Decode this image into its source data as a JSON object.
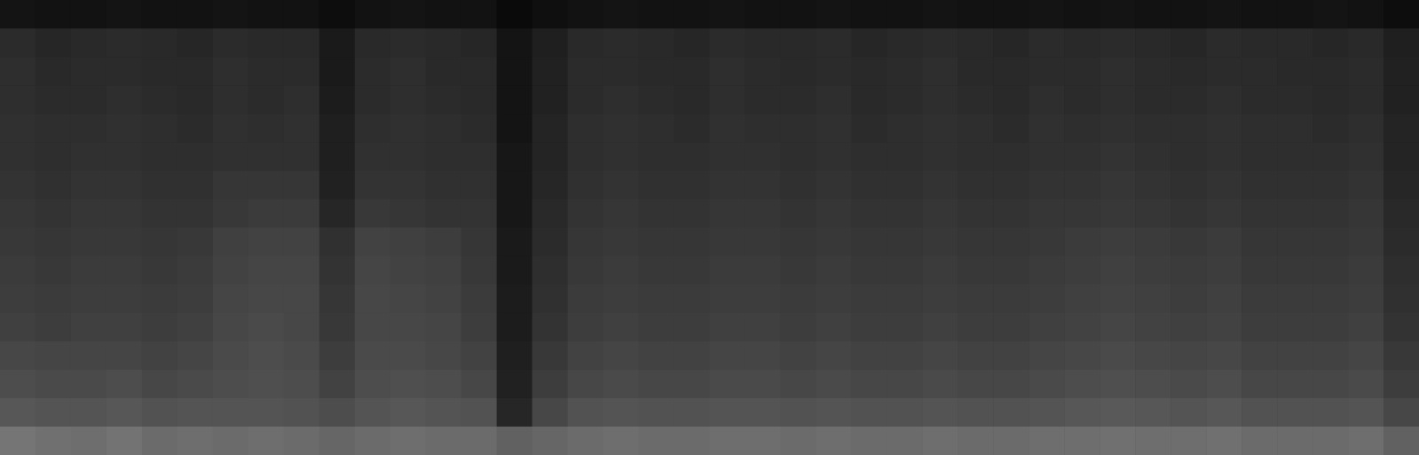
{
  "chart_data": {
    "type": "heatmap",
    "tick_labels": false,
    "zlim": [
      0,
      1
    ],
    "cells": [
      [
        0.08,
        0.07,
        0.07,
        0.08,
        0.07,
        0.07,
        0.08,
        0.07,
        0.07,
        0.05,
        0.07,
        0.08,
        0.07,
        0.07,
        0.04,
        0.06,
        0.07,
        0.08,
        0.07,
        0.07,
        0.08,
        0.07,
        0.07,
        0.08,
        0.07,
        0.07,
        0.08,
        0.07,
        0.07,
        0.08,
        0.07,
        0.08,
        0.07,
        0.07,
        0.08,
        0.07,
        0.07,
        0.08,
        0.07,
        0.05
      ],
      [
        0.17,
        0.15,
        0.16,
        0.17,
        0.16,
        0.15,
        0.17,
        0.16,
        0.16,
        0.1,
        0.16,
        0.17,
        0.16,
        0.15,
        0.08,
        0.12,
        0.16,
        0.17,
        0.16,
        0.15,
        0.17,
        0.16,
        0.16,
        0.17,
        0.15,
        0.16,
        0.17,
        0.16,
        0.15,
        0.17,
        0.16,
        0.17,
        0.16,
        0.15,
        0.17,
        0.16,
        0.16,
        0.15,
        0.16,
        0.12
      ],
      [
        0.18,
        0.16,
        0.17,
        0.17,
        0.16,
        0.16,
        0.18,
        0.17,
        0.17,
        0.1,
        0.17,
        0.18,
        0.16,
        0.16,
        0.08,
        0.13,
        0.17,
        0.17,
        0.16,
        0.16,
        0.18,
        0.17,
        0.16,
        0.17,
        0.16,
        0.17,
        0.18,
        0.16,
        0.16,
        0.17,
        0.17,
        0.18,
        0.17,
        0.16,
        0.17,
        0.17,
        0.16,
        0.16,
        0.17,
        0.13
      ],
      [
        0.18,
        0.17,
        0.17,
        0.18,
        0.17,
        0.16,
        0.18,
        0.17,
        0.18,
        0.11,
        0.17,
        0.18,
        0.17,
        0.16,
        0.08,
        0.13,
        0.17,
        0.18,
        0.17,
        0.16,
        0.18,
        0.17,
        0.17,
        0.18,
        0.16,
        0.17,
        0.18,
        0.17,
        0.16,
        0.18,
        0.17,
        0.18,
        0.17,
        0.17,
        0.18,
        0.17,
        0.17,
        0.16,
        0.17,
        0.13
      ],
      [
        0.19,
        0.18,
        0.18,
        0.19,
        0.18,
        0.17,
        0.19,
        0.18,
        0.19,
        0.12,
        0.18,
        0.19,
        0.18,
        0.17,
        0.08,
        0.14,
        0.18,
        0.19,
        0.18,
        0.17,
        0.19,
        0.18,
        0.18,
        0.19,
        0.17,
        0.18,
        0.19,
        0.18,
        0.17,
        0.19,
        0.18,
        0.19,
        0.18,
        0.18,
        0.19,
        0.18,
        0.18,
        0.17,
        0.18,
        0.14
      ],
      [
        0.19,
        0.18,
        0.19,
        0.19,
        0.18,
        0.18,
        0.19,
        0.19,
        0.19,
        0.12,
        0.19,
        0.19,
        0.18,
        0.18,
        0.09,
        0.14,
        0.18,
        0.19,
        0.18,
        0.18,
        0.19,
        0.19,
        0.18,
        0.19,
        0.18,
        0.18,
        0.19,
        0.18,
        0.18,
        0.19,
        0.19,
        0.2,
        0.19,
        0.18,
        0.19,
        0.18,
        0.18,
        0.18,
        0.19,
        0.14
      ],
      [
        0.2,
        0.19,
        0.2,
        0.2,
        0.19,
        0.19,
        0.21,
        0.21,
        0.21,
        0.13,
        0.2,
        0.2,
        0.19,
        0.19,
        0.09,
        0.15,
        0.19,
        0.2,
        0.19,
        0.19,
        0.2,
        0.2,
        0.19,
        0.2,
        0.19,
        0.19,
        0.2,
        0.19,
        0.19,
        0.2,
        0.2,
        0.21,
        0.2,
        0.19,
        0.2,
        0.19,
        0.19,
        0.19,
        0.2,
        0.15
      ],
      [
        0.21,
        0.2,
        0.21,
        0.21,
        0.2,
        0.2,
        0.22,
        0.23,
        0.23,
        0.15,
        0.22,
        0.21,
        0.2,
        0.2,
        0.09,
        0.16,
        0.2,
        0.21,
        0.2,
        0.2,
        0.21,
        0.21,
        0.2,
        0.21,
        0.2,
        0.2,
        0.21,
        0.2,
        0.2,
        0.21,
        0.21,
        0.22,
        0.21,
        0.2,
        0.21,
        0.2,
        0.2,
        0.2,
        0.21,
        0.16
      ],
      [
        0.22,
        0.21,
        0.22,
        0.22,
        0.21,
        0.22,
        0.25,
        0.26,
        0.26,
        0.19,
        0.26,
        0.25,
        0.24,
        0.21,
        0.1,
        0.17,
        0.21,
        0.22,
        0.21,
        0.21,
        0.22,
        0.22,
        0.21,
        0.22,
        0.21,
        0.21,
        0.22,
        0.21,
        0.21,
        0.22,
        0.23,
        0.24,
        0.23,
        0.22,
        0.23,
        0.21,
        0.21,
        0.21,
        0.22,
        0.17
      ],
      [
        0.23,
        0.22,
        0.23,
        0.23,
        0.22,
        0.23,
        0.26,
        0.27,
        0.27,
        0.2,
        0.27,
        0.26,
        0.25,
        0.22,
        0.1,
        0.18,
        0.22,
        0.23,
        0.22,
        0.22,
        0.23,
        0.23,
        0.22,
        0.23,
        0.22,
        0.22,
        0.23,
        0.22,
        0.22,
        0.23,
        0.24,
        0.25,
        0.24,
        0.23,
        0.24,
        0.22,
        0.22,
        0.22,
        0.23,
        0.18
      ],
      [
        0.24,
        0.23,
        0.24,
        0.24,
        0.23,
        0.24,
        0.27,
        0.28,
        0.28,
        0.21,
        0.28,
        0.27,
        0.26,
        0.23,
        0.11,
        0.19,
        0.23,
        0.24,
        0.23,
        0.23,
        0.24,
        0.24,
        0.23,
        0.24,
        0.23,
        0.23,
        0.24,
        0.23,
        0.23,
        0.24,
        0.25,
        0.26,
        0.25,
        0.24,
        0.25,
        0.23,
        0.23,
        0.23,
        0.24,
        0.19
      ],
      [
        0.25,
        0.24,
        0.25,
        0.25,
        0.24,
        0.25,
        0.28,
        0.29,
        0.28,
        0.22,
        0.28,
        0.28,
        0.27,
        0.24,
        0.11,
        0.2,
        0.24,
        0.25,
        0.24,
        0.24,
        0.25,
        0.25,
        0.24,
        0.25,
        0.24,
        0.24,
        0.25,
        0.24,
        0.24,
        0.25,
        0.26,
        0.27,
        0.26,
        0.25,
        0.26,
        0.24,
        0.24,
        0.24,
        0.25,
        0.2
      ],
      [
        0.28,
        0.27,
        0.27,
        0.27,
        0.26,
        0.27,
        0.29,
        0.3,
        0.29,
        0.24,
        0.29,
        0.29,
        0.28,
        0.26,
        0.12,
        0.22,
        0.26,
        0.27,
        0.26,
        0.26,
        0.27,
        0.27,
        0.26,
        0.27,
        0.26,
        0.26,
        0.27,
        0.26,
        0.26,
        0.27,
        0.28,
        0.29,
        0.28,
        0.27,
        0.28,
        0.26,
        0.26,
        0.26,
        0.27,
        0.22
      ],
      [
        0.3,
        0.29,
        0.29,
        0.3,
        0.28,
        0.29,
        0.3,
        0.31,
        0.3,
        0.26,
        0.3,
        0.31,
        0.3,
        0.28,
        0.13,
        0.24,
        0.28,
        0.29,
        0.28,
        0.28,
        0.29,
        0.29,
        0.28,
        0.29,
        0.28,
        0.28,
        0.29,
        0.28,
        0.28,
        0.29,
        0.3,
        0.31,
        0.3,
        0.29,
        0.3,
        0.28,
        0.28,
        0.28,
        0.29,
        0.24
      ],
      [
        0.34,
        0.33,
        0.33,
        0.34,
        0.32,
        0.33,
        0.33,
        0.33,
        0.32,
        0.3,
        0.33,
        0.34,
        0.33,
        0.32,
        0.15,
        0.28,
        0.32,
        0.33,
        0.32,
        0.32,
        0.33,
        0.33,
        0.32,
        0.33,
        0.32,
        0.32,
        0.33,
        0.32,
        0.32,
        0.33,
        0.34,
        0.35,
        0.34,
        0.33,
        0.34,
        0.32,
        0.32,
        0.32,
        0.33,
        0.28
      ],
      [
        0.46,
        0.44,
        0.43,
        0.45,
        0.42,
        0.43,
        0.42,
        0.43,
        0.42,
        0.4,
        0.42,
        0.43,
        0.42,
        0.42,
        0.38,
        0.4,
        0.42,
        0.43,
        0.42,
        0.42,
        0.43,
        0.43,
        0.42,
        0.43,
        0.42,
        0.42,
        0.43,
        0.42,
        0.42,
        0.43,
        0.43,
        0.44,
        0.43,
        0.43,
        0.44,
        0.42,
        0.42,
        0.42,
        0.43,
        0.38
      ]
    ]
  }
}
